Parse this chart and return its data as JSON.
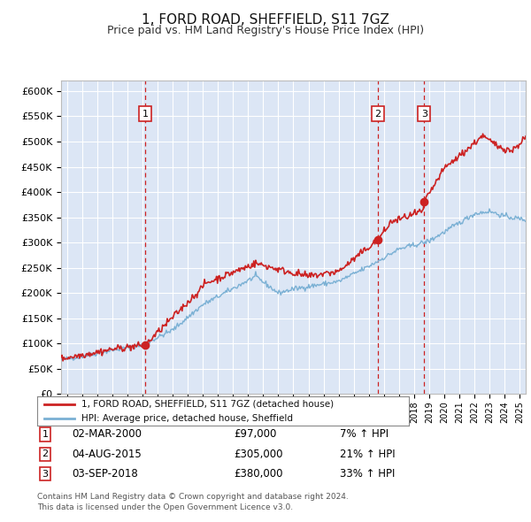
{
  "title": "1, FORD ROAD, SHEFFIELD, S11 7GZ",
  "subtitle": "Price paid vs. HM Land Registry's House Price Index (HPI)",
  "title_fontsize": 11,
  "subtitle_fontsize": 9,
  "background_color": "#ffffff",
  "plot_bg_color": "#dce6f5",
  "grid_color": "#ffffff",
  "ylim": [
    0,
    620000
  ],
  "yticks": [
    0,
    50000,
    100000,
    150000,
    200000,
    250000,
    300000,
    350000,
    400000,
    450000,
    500000,
    550000,
    600000
  ],
  "xlim_start": 1994.6,
  "xlim_end": 2025.4,
  "hpi_line_color": "#7ab0d4",
  "sale_line_color": "#cc2222",
  "sale_dot_color": "#cc2222",
  "vline_color": "#cc2222",
  "transactions": [
    {
      "num": 1,
      "date_label": "02-MAR-2000",
      "price": "£97,000",
      "pct": "7%",
      "year": 2000.17
    },
    {
      "num": 2,
      "date_label": "04-AUG-2015",
      "price": "£305,000",
      "pct": "21%",
      "year": 2015.59
    },
    {
      "num": 3,
      "date_label": "03-SEP-2018",
      "price": "£380,000",
      "pct": "33%",
      "year": 2018.67
    }
  ],
  "legend_label_red": "1, FORD ROAD, SHEFFIELD, S11 7GZ (detached house)",
  "legend_label_blue": "HPI: Average price, detached house, Sheffield",
  "footer_line1": "Contains HM Land Registry data © Crown copyright and database right 2024.",
  "footer_line2": "This data is licensed under the Open Government Licence v3.0.",
  "sale_dot_prices": [
    97000,
    305000,
    380000
  ]
}
